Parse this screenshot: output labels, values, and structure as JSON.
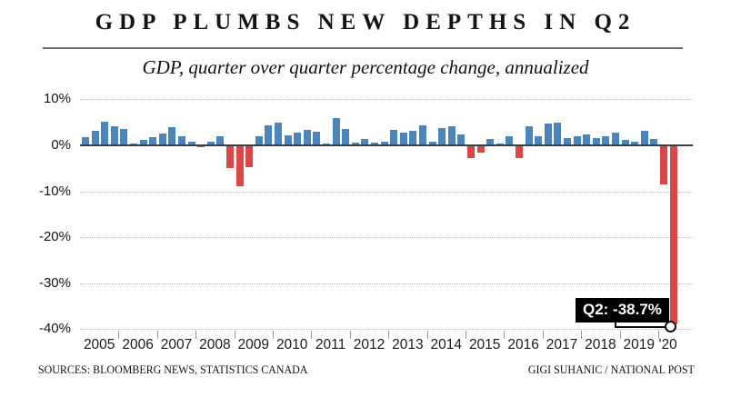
{
  "header": {
    "title": "GDP PLUMBS NEW DEPTHS IN Q2",
    "subtitle": "GDP, quarter over quarter percentage change, annualized"
  },
  "footer": {
    "sources": "SOURCES: BLOOMBERG NEWS, STATISTICS CANADA",
    "credit": "GIGI SUHANIC / NATIONAL POST"
  },
  "chart_data": {
    "type": "bar",
    "title": "GDP PLUMBS NEW DEPTHS IN Q2",
    "subtitle": "GDP, quarter over quarter percentage change, annualized",
    "ylabel": "percent change, annualized",
    "ylim": [
      -40,
      10
    ],
    "yticks": [
      10,
      0,
      -10,
      -20,
      -30,
      -40
    ],
    "ytick_labels": [
      "10%",
      "0%",
      "-10%",
      "-20%",
      "-30%",
      "-40%"
    ],
    "grid": "dotted horizontal gridlines, solid zero axis",
    "legend": "none",
    "x_year_labels": [
      "2005",
      "2006",
      "2007",
      "2008",
      "2009",
      "2010",
      "2011",
      "2012",
      "2013",
      "2014",
      "2015",
      "2016",
      "2017",
      "2018",
      "2019",
      "'20"
    ],
    "quarters_per_year": [
      4,
      4,
      4,
      4,
      4,
      4,
      4,
      4,
      4,
      4,
      4,
      4,
      4,
      4,
      4,
      2
    ],
    "values": [
      1.7,
      3.1,
      5.2,
      4.2,
      3.5,
      0.3,
      1.1,
      1.8,
      2.6,
      3.9,
      1.9,
      0.8,
      -0.2,
      0.8,
      2.0,
      -4.8,
      -8.7,
      -4.6,
      2.0,
      4.4,
      4.9,
      2.2,
      2.7,
      3.4,
      2.9,
      0.4,
      5.9,
      3.5,
      0.6,
      1.4,
      0.6,
      0.7,
      3.3,
      2.8,
      3.1,
      4.3,
      0.7,
      3.8,
      4.1,
      2.3,
      -2.5,
      -1.4,
      1.3,
      0.3,
      1.9,
      -2.5,
      4.1,
      2.0,
      4.8,
      5.0,
      1.5,
      1.9,
      2.4,
      1.6,
      2.0,
      2.7,
      1.1,
      0.7,
      3.2,
      1.3,
      -8.3,
      -38.7
    ],
    "positive_color": "#4a86bd",
    "negative_color": "#e04545",
    "annotation": {
      "label": "Q2: -38.7%",
      "value": -38.7,
      "marker": "open-circle"
    }
  }
}
